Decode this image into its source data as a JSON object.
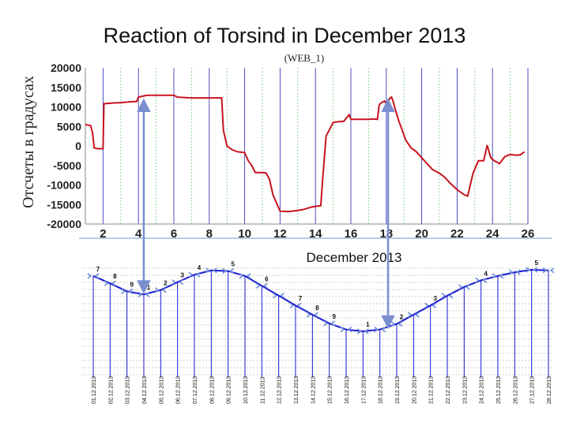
{
  "slide": {
    "title": "Reaction of Torsind in December 2013"
  },
  "chart_data": [
    {
      "type": "line",
      "title": "",
      "subtitle": "(WEB_1)",
      "xlabel": "",
      "ylabel": "Отсчеты в градусах",
      "xlim": [
        1,
        26
      ],
      "ylim": [
        -20000,
        20000
      ],
      "xticks": [
        2,
        4,
        6,
        8,
        10,
        12,
        14,
        16,
        18,
        20,
        22,
        24,
        26
      ],
      "yticks": [
        20000,
        15000,
        10000,
        5000,
        0,
        -5000,
        -10000,
        -15000,
        -20000
      ],
      "grid": true,
      "colors": {
        "line": "#c8141e",
        "grid_major": "#3a3ac0",
        "grid_minor": "#7fc97f"
      },
      "series": [
        {
          "x": [
            1.0,
            1.3,
            1.4,
            1.5,
            1.7,
            2.0,
            2.05,
            2.3,
            2.6,
            3.0,
            3.5,
            3.9,
            4.0,
            4.4,
            4.6,
            5.0,
            5.5,
            6.0,
            6.2,
            7.0,
            7.5,
            8.0,
            8.5,
            8.7,
            8.8,
            9.0,
            9.3,
            9.6,
            10.0,
            10.2,
            10.4,
            10.6,
            11.0,
            11.2,
            11.4,
            11.6,
            12.0,
            12.5,
            13.0,
            13.3,
            13.8,
            14.0,
            14.1,
            14.3,
            14.4,
            14.6,
            15.0,
            15.3,
            15.6,
            15.9,
            16.0,
            16.3,
            16.6,
            17.0,
            17.3,
            17.5,
            17.6,
            17.7,
            17.9,
            18.0,
            18.2,
            18.3,
            18.4,
            18.5,
            18.7,
            18.9,
            19.1,
            19.4,
            19.7,
            20.0,
            20.3,
            20.6,
            21.0,
            21.3,
            21.6,
            22.0,
            22.4,
            22.6,
            22.9,
            23.2,
            23.5,
            23.7,
            23.9,
            24.1,
            24.4,
            24.7,
            25.0,
            25.4,
            25.6,
            25.8
          ],
          "y": [
            5500,
            5200,
            3500,
            -500,
            -700,
            -700,
            10800,
            10900,
            11000,
            11100,
            11300,
            11400,
            12500,
            12900,
            13000,
            13000,
            13000,
            13000,
            12500,
            12300,
            12300,
            12300,
            12300,
            12300,
            4000,
            0,
            -1000,
            -1500,
            -1700,
            -3800,
            -5000,
            -6800,
            -6800,
            -6900,
            -8500,
            -12500,
            -16700,
            -16800,
            -16500,
            -16300,
            -15600,
            -15500,
            -15400,
            -15300,
            -8800,
            2500,
            6000,
            6200,
            6300,
            8000,
            6800,
            6800,
            6800,
            6800,
            6900,
            6800,
            10500,
            11000,
            11500,
            10800,
            12200,
            12500,
            11200,
            9500,
            6500,
            4000,
            1500,
            -500,
            -1500,
            -3000,
            -4500,
            -6000,
            -7000,
            -8000,
            -9500,
            -11200,
            -12500,
            -12800,
            -7000,
            -3800,
            -3800,
            200,
            -3000,
            -3800,
            -4500,
            -2700,
            -2200,
            -2400,
            -2200,
            -1500
          ]
        }
      ]
    },
    {
      "type": "line",
      "title": "December 2013",
      "xlabel": "",
      "ylabel": "",
      "grid": true,
      "colors": {
        "line": "#1a1ad0",
        "stems": "#1a1ad0",
        "gridlines": "#9a9a9a"
      },
      "categories": [
        "01.12.2013",
        "02.12.2013",
        "03.12.2013",
        "04.12.2013",
        "05.12.2013",
        "06.12.2013",
        "07.12.2013",
        "08.12.2013",
        "09.12.2013",
        "10.12.2013",
        "11.12.2013",
        "12.12.2013",
        "13.12.2013",
        "14.12.2013",
        "15.12.2013",
        "16.12.2013",
        "17.12.2013",
        "18.12.2013",
        "19.12.2013",
        "20.12.2013",
        "21.12.2013",
        "22.12.2013",
        "23.12.2013",
        "24.12.2013",
        "25.12.2013",
        "26.12.2013",
        "27.12.2013",
        "28.12.2013"
      ],
      "values": [
        0.1,
        0.22,
        0.35,
        0.4,
        0.33,
        0.2,
        0.08,
        0.01,
        0.02,
        0.1,
        0.26,
        0.42,
        0.58,
        0.73,
        0.87,
        0.97,
        1.0,
        0.97,
        0.88,
        0.73,
        0.58,
        0.42,
        0.28,
        0.17,
        0.1,
        0.04,
        0.0,
        0.01
      ],
      "annotations": [
        {
          "text": "7",
          "category": "01.12.2013"
        },
        {
          "text": "8",
          "category": "02.12.2013"
        },
        {
          "text": "9",
          "category": "03.12.2013"
        },
        {
          "text": "1",
          "category": "04.12.2013"
        },
        {
          "text": "2",
          "category": "05.12.2013"
        },
        {
          "text": "3",
          "category": "06.12.2013"
        },
        {
          "text": "4",
          "category": "07.12.2013"
        },
        {
          "text": "5",
          "category": "09.12.2013"
        },
        {
          "text": "6",
          "category": "11.12.2013"
        },
        {
          "text": "7",
          "category": "13.12.2013"
        },
        {
          "text": "8",
          "category": "14.12.2013"
        },
        {
          "text": "9",
          "category": "15.12.2013"
        },
        {
          "text": "1",
          "category": "17.12.2013"
        },
        {
          "text": "2",
          "category": "19.12.2013"
        },
        {
          "text": "3",
          "category": "21.12.2013"
        },
        {
          "text": "4",
          "category": "24.12.2013"
        },
        {
          "text": "5",
          "category": "27.12.2013"
        }
      ],
      "connections": [
        {
          "top_x": 4.3,
          "bottom_category": "04.12.2013"
        },
        {
          "top_x": 18.1,
          "bottom_category": "18.12.2013"
        }
      ]
    }
  ]
}
